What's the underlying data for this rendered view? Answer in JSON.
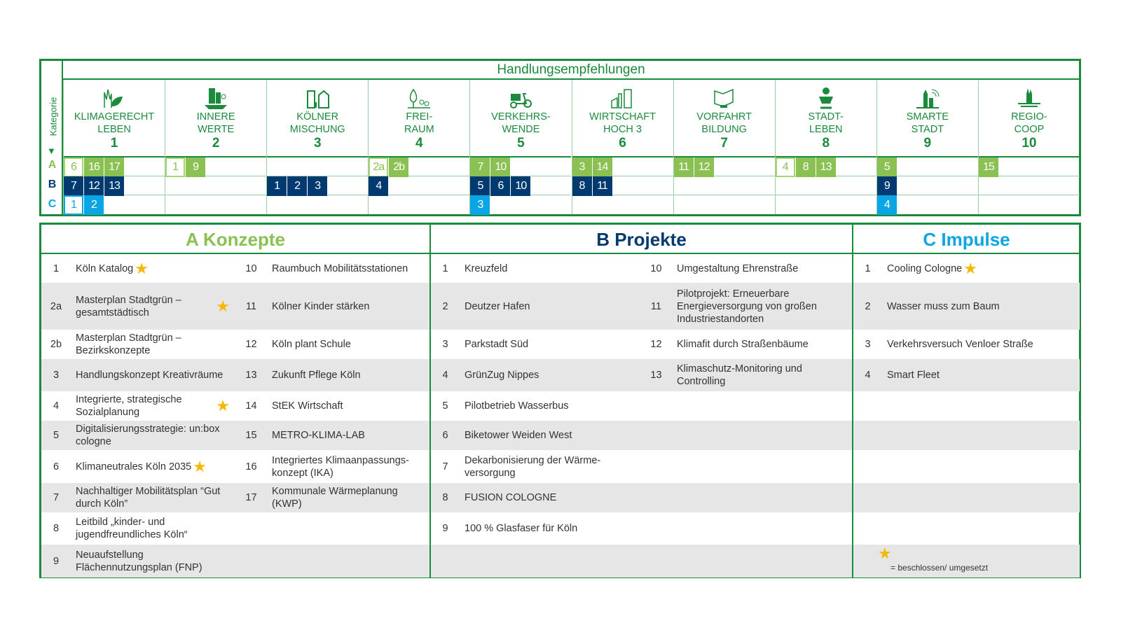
{
  "matrix": {
    "header": "Handlungsempfehlungen",
    "category_label": "Kategorie",
    "row_labels": [
      "A",
      "B",
      "C"
    ],
    "colors": {
      "A": "#8bc153",
      "B": "#003a70",
      "C": "#0aa5e4",
      "frame": "#1a8a3c",
      "star": "#f5b800"
    },
    "columns": [
      {
        "title": [
          "KLIMAGERECHT",
          "LEBEN"
        ],
        "number": "1",
        "icon": "leaves-cathedral-icon",
        "A": [
          [
            "6",
            true
          ],
          [
            "16",
            false
          ],
          [
            "17",
            false
          ]
        ],
        "B": [
          [
            "7",
            false
          ],
          [
            "12",
            false
          ],
          [
            "13",
            false
          ]
        ],
        "C": [
          [
            "1",
            true
          ],
          [
            "2",
            false
          ]
        ]
      },
      {
        "title": [
          "INNERE",
          "WERTE"
        ],
        "number": "2",
        "icon": "buildings-icon",
        "A": [
          [
            "1",
            true
          ],
          [
            "9",
            false
          ]
        ],
        "B": [],
        "C": []
      },
      {
        "title": [
          "KÖLNER",
          "MISCHUNG"
        ],
        "number": "3",
        "icon": "mixed-buildings-icon",
        "A": [],
        "B": [
          [
            "1",
            false
          ],
          [
            "2",
            false
          ],
          [
            "3",
            false
          ]
        ],
        "C": []
      },
      {
        "title": [
          "FREI-",
          "RAUM"
        ],
        "number": "4",
        "icon": "trees-icon",
        "A": [
          [
            "2a",
            true
          ],
          [
            "2b",
            false
          ]
        ],
        "B": [
          [
            "4",
            false
          ]
        ],
        "C": []
      },
      {
        "title": [
          "VERKEHRS-",
          "WENDE"
        ],
        "number": "5",
        "icon": "cargo-bike-icon",
        "A": [
          [
            "7",
            false
          ],
          [
            "10",
            false
          ]
        ],
        "B": [
          [
            "5",
            false
          ],
          [
            "6",
            false
          ],
          [
            "10",
            false
          ]
        ],
        "C": [
          [
            "3",
            false
          ]
        ]
      },
      {
        "title": [
          "WIRTSCHAFT",
          "HOCH 3"
        ],
        "number": "6",
        "icon": "industry-icon",
        "A": [
          [
            "3",
            false
          ],
          [
            "14",
            false
          ]
        ],
        "B": [
          [
            "8",
            false
          ],
          [
            "11",
            false
          ]
        ],
        "C": []
      },
      {
        "title": [
          "VORFAHRT",
          "BILDUNG"
        ],
        "number": "7",
        "icon": "book-icon",
        "A": [
          [
            "11",
            false
          ],
          [
            "12",
            false
          ]
        ],
        "B": [],
        "C": []
      },
      {
        "title": [
          "STADT-",
          "LEBEN"
        ],
        "number": "8",
        "icon": "person-icon",
        "A": [
          [
            "4",
            true
          ],
          [
            "8",
            false
          ],
          [
            "13",
            false
          ]
        ],
        "B": [],
        "C": []
      },
      {
        "title": [
          "SMARTE",
          "STADT"
        ],
        "number": "9",
        "icon": "smart-city-icon",
        "A": [
          [
            "5",
            false
          ]
        ],
        "B": [
          [
            "9",
            false
          ]
        ],
        "C": [
          [
            "4",
            false
          ]
        ]
      },
      {
        "title": [
          "REGIO-",
          "COOP"
        ],
        "number": "10",
        "icon": "region-icon",
        "A": [
          [
            "15",
            false
          ]
        ],
        "B": [],
        "C": []
      }
    ]
  },
  "sections": {
    "A": {
      "title": "A Konzepte",
      "color": "#8bc153",
      "left": [
        [
          "1",
          "Köln Katalog",
          true
        ],
        [
          "2a",
          "Masterplan Stadtgrün – gesamtstädtisch",
          true
        ],
        [
          "2b",
          "Masterplan Stadtgrün – Bezirkskonzepte",
          false
        ],
        [
          "3",
          "Handlungskonzept Kreativräume",
          false
        ],
        [
          "4",
          "Integrierte, strategische Sozialplanung",
          true
        ],
        [
          "5",
          "Digitalisierungsstrategie: un:box cologne",
          false
        ],
        [
          "6",
          "Klimaneutrales Köln 2035",
          true
        ],
        [
          "7",
          "Nachhaltiger Mobilitätsplan “Gut durch Köln”",
          false
        ],
        [
          "8",
          "Leitbild „kinder- und jugendfreundliches Köln“",
          false
        ],
        [
          "9",
          "Neuaufstellung Flächennutzungsplan (FNP)",
          false
        ]
      ],
      "right": [
        [
          "10",
          "Raumbuch Mobilitätsstationen",
          false
        ],
        [
          "11",
          "Kölner Kinder stärken",
          false
        ],
        [
          "12",
          "Köln plant Schule",
          false
        ],
        [
          "13",
          "Zukunft Pflege Köln",
          false
        ],
        [
          "14",
          "StEK Wirtschaft",
          false
        ],
        [
          "15",
          "METRO-KLIMA-LAB",
          false
        ],
        [
          "16",
          "Integriertes Klimaanpassungs-konzept (IKA)",
          false
        ],
        [
          "17",
          "Kommunale Wärmeplanung (KWP)",
          false
        ]
      ]
    },
    "B": {
      "title": "B Projekte",
      "color": "#003a70",
      "left": [
        [
          "1",
          "Kreuzfeld",
          false
        ],
        [
          "2",
          "Deutzer Hafen",
          false
        ],
        [
          "3",
          "Parkstadt Süd",
          false
        ],
        [
          "4",
          "GrünZug Nippes",
          false
        ],
        [
          "5",
          "Pilotbetrieb Wasserbus",
          false
        ],
        [
          "6",
          "Biketower Weiden West",
          false
        ],
        [
          "7",
          "Dekarbonisierung der Wärme-versorgung",
          false
        ],
        [
          "8",
          "FUSION COLOGNE",
          false
        ],
        [
          "9",
          "100 % Glasfaser für Köln",
          false
        ]
      ],
      "right": [
        [
          "10",
          "Umgestaltung Ehrenstraße",
          false
        ],
        [
          "11",
          "Pilotprojekt: Erneuerbare Energieversorgung von großen Industriestandorten",
          false
        ],
        [
          "12",
          "Klimafit durch Straßenbäume",
          false
        ],
        [
          "13",
          "Klimaschutz-Monitoring und Controlling",
          false
        ]
      ]
    },
    "C": {
      "title": "C Impulse",
      "color": "#0aa5e4",
      "left": [
        [
          "1",
          "Cooling Cologne",
          true
        ],
        [
          "2",
          "Wasser muss zum Baum",
          false
        ],
        [
          "3",
          "Verkehrsversuch Venloer Straße",
          false
        ],
        [
          "4",
          "Smart Fleet",
          false
        ]
      ]
    }
  },
  "legend": {
    "icon": "star-icon",
    "text": "= beschlossen/ umgesetzt"
  }
}
